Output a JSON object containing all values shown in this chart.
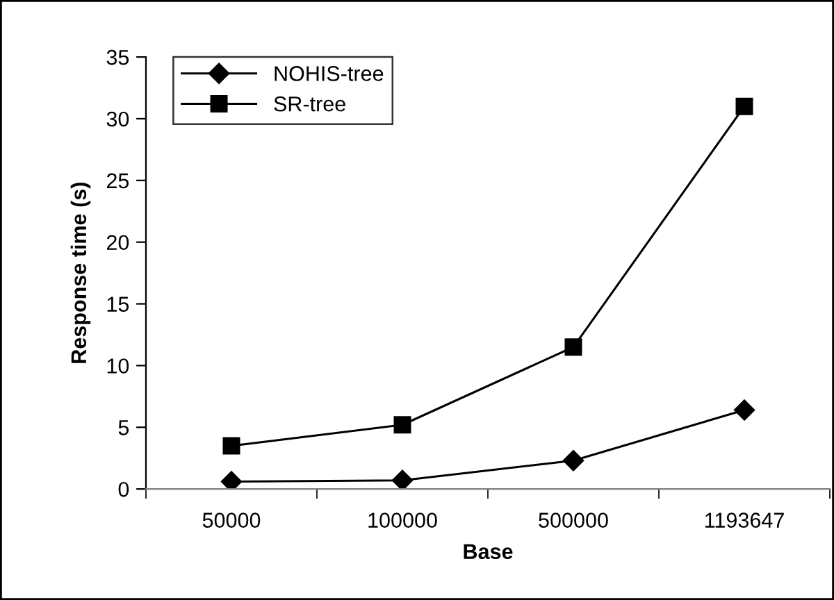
{
  "chart_data": {
    "type": "line",
    "xlabel": "Base",
    "ylabel": "Response time (s)",
    "categories": [
      "50000",
      "100000",
      "500000",
      "1193647"
    ],
    "series": [
      {
        "name": "NOHIS-tree",
        "color": "#000000",
        "marker": "diamond",
        "values": [
          0.6,
          0.7,
          2.3,
          6.4
        ]
      },
      {
        "name": "SR-tree",
        "color": "#000000",
        "marker": "square",
        "values": [
          3.5,
          5.2,
          11.5,
          31
        ]
      }
    ],
    "ylim": [
      0,
      35
    ],
    "yticks": [
      0,
      5,
      10,
      15,
      20,
      25,
      30,
      35
    ],
    "grid": false,
    "legend": "top left",
    "line_style": "solid"
  }
}
